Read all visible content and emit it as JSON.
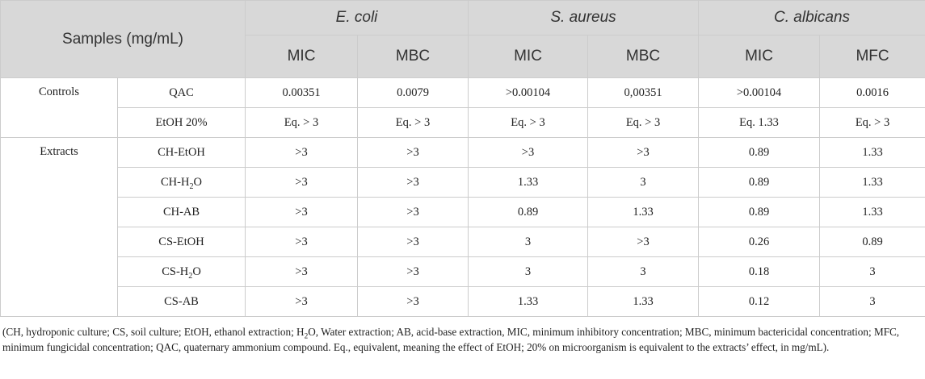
{
  "header": {
    "samples_label": "Samples (mg/mL)",
    "organisms": [
      "E. coli",
      "S. aureus",
      "C. albicans"
    ],
    "metrics": [
      "MIC",
      "MBC",
      "MIC",
      "MBC",
      "MIC",
      "MFC"
    ]
  },
  "groups": [
    {
      "label": "Controls",
      "rows": [
        {
          "sample": "QAC",
          "values": [
            "0.00351",
            "0.0079",
            ">0.00104",
            "0,00351",
            ">0.00104",
            "0.0016"
          ]
        },
        {
          "sample": "EtOH 20%",
          "values": [
            "Eq. > 3",
            "Eq. > 3",
            "Eq. > 3",
            "Eq. > 3",
            "Eq. 1.33",
            "Eq. > 3"
          ]
        }
      ]
    },
    {
      "label": "Extracts",
      "rows": [
        {
          "sample": "CH-EtOH",
          "values": [
            ">3",
            ">3",
            ">3",
            ">3",
            "0.89",
            "1.33"
          ]
        },
        {
          "sample_prefix": "CH-H",
          "sample_sub": "2",
          "sample_suffix": "O",
          "values": [
            ">3",
            ">3",
            "1.33",
            "3",
            "0.89",
            "1.33"
          ]
        },
        {
          "sample": "CH-AB",
          "values": [
            ">3",
            ">3",
            "0.89",
            "1.33",
            "0.89",
            "1.33"
          ]
        },
        {
          "sample": "CS-EtOH",
          "values": [
            ">3",
            ">3",
            "3",
            ">3",
            "0.26",
            "0.89"
          ]
        },
        {
          "sample_prefix": "CS-H",
          "sample_sub": "2",
          "sample_suffix": "O",
          "values": [
            ">3",
            ">3",
            "3",
            "3",
            "0.18",
            "3"
          ]
        },
        {
          "sample": "CS-AB",
          "values": [
            ">3",
            ">3",
            "1.33",
            "1.33",
            "0.12",
            "3"
          ]
        }
      ]
    }
  ],
  "footnote": {
    "part1": "(CH, hydroponic culture; CS, soil culture; EtOH, ethanol extraction; H",
    "sub": "2",
    "part2": "O, Water extraction; AB, acid-base extraction, MIC, minimum inhibitory concentration; MBC, minimum bactericidal concentration; MFC, minimum fungicidal concentration; QAC, quaternary ammonium compound. Eq., equivalent, meaning the effect of EtOH; 20% on microorganism is equivalent to the extracts’ effect, in mg/mL)."
  }
}
